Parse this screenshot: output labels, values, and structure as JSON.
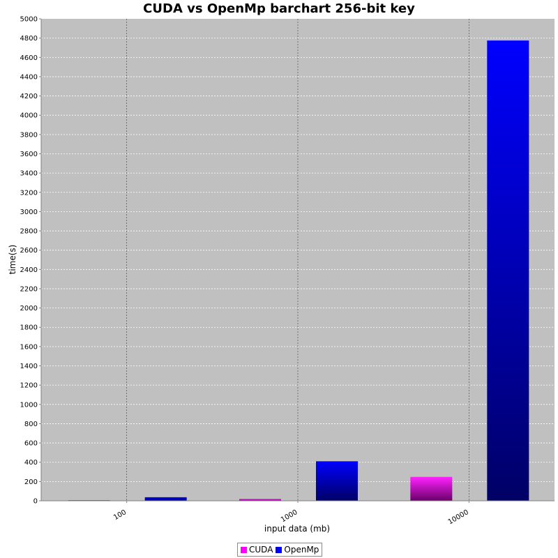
{
  "chart_data": {
    "type": "bar",
    "title": "CUDA vs OpenMp barchart 256-bit key",
    "xlabel": "input data (mb)",
    "ylabel": "time(s)",
    "categories": [
      "100",
      "1000",
      "10000"
    ],
    "series": [
      {
        "name": "CUDA",
        "color": "#ff00ff",
        "values": [
          2,
          20,
          248
        ]
      },
      {
        "name": "OpenMp",
        "color": "#0000ff",
        "values": [
          37,
          410,
          4775
        ]
      }
    ],
    "ylim": [
      0,
      5000
    ],
    "yticks": [
      "0",
      "200",
      "400",
      "600",
      "800",
      "1000",
      "1200",
      "1400",
      "1600",
      "1800",
      "2000",
      "2200",
      "2400",
      "2600",
      "2800",
      "3000",
      "3200",
      "3400",
      "3600",
      "3800",
      "4000",
      "4200",
      "4400",
      "4600",
      "4800",
      "5000"
    ],
    "grid": true,
    "legend": "bottom",
    "plot_background": "#c0c0c0"
  }
}
